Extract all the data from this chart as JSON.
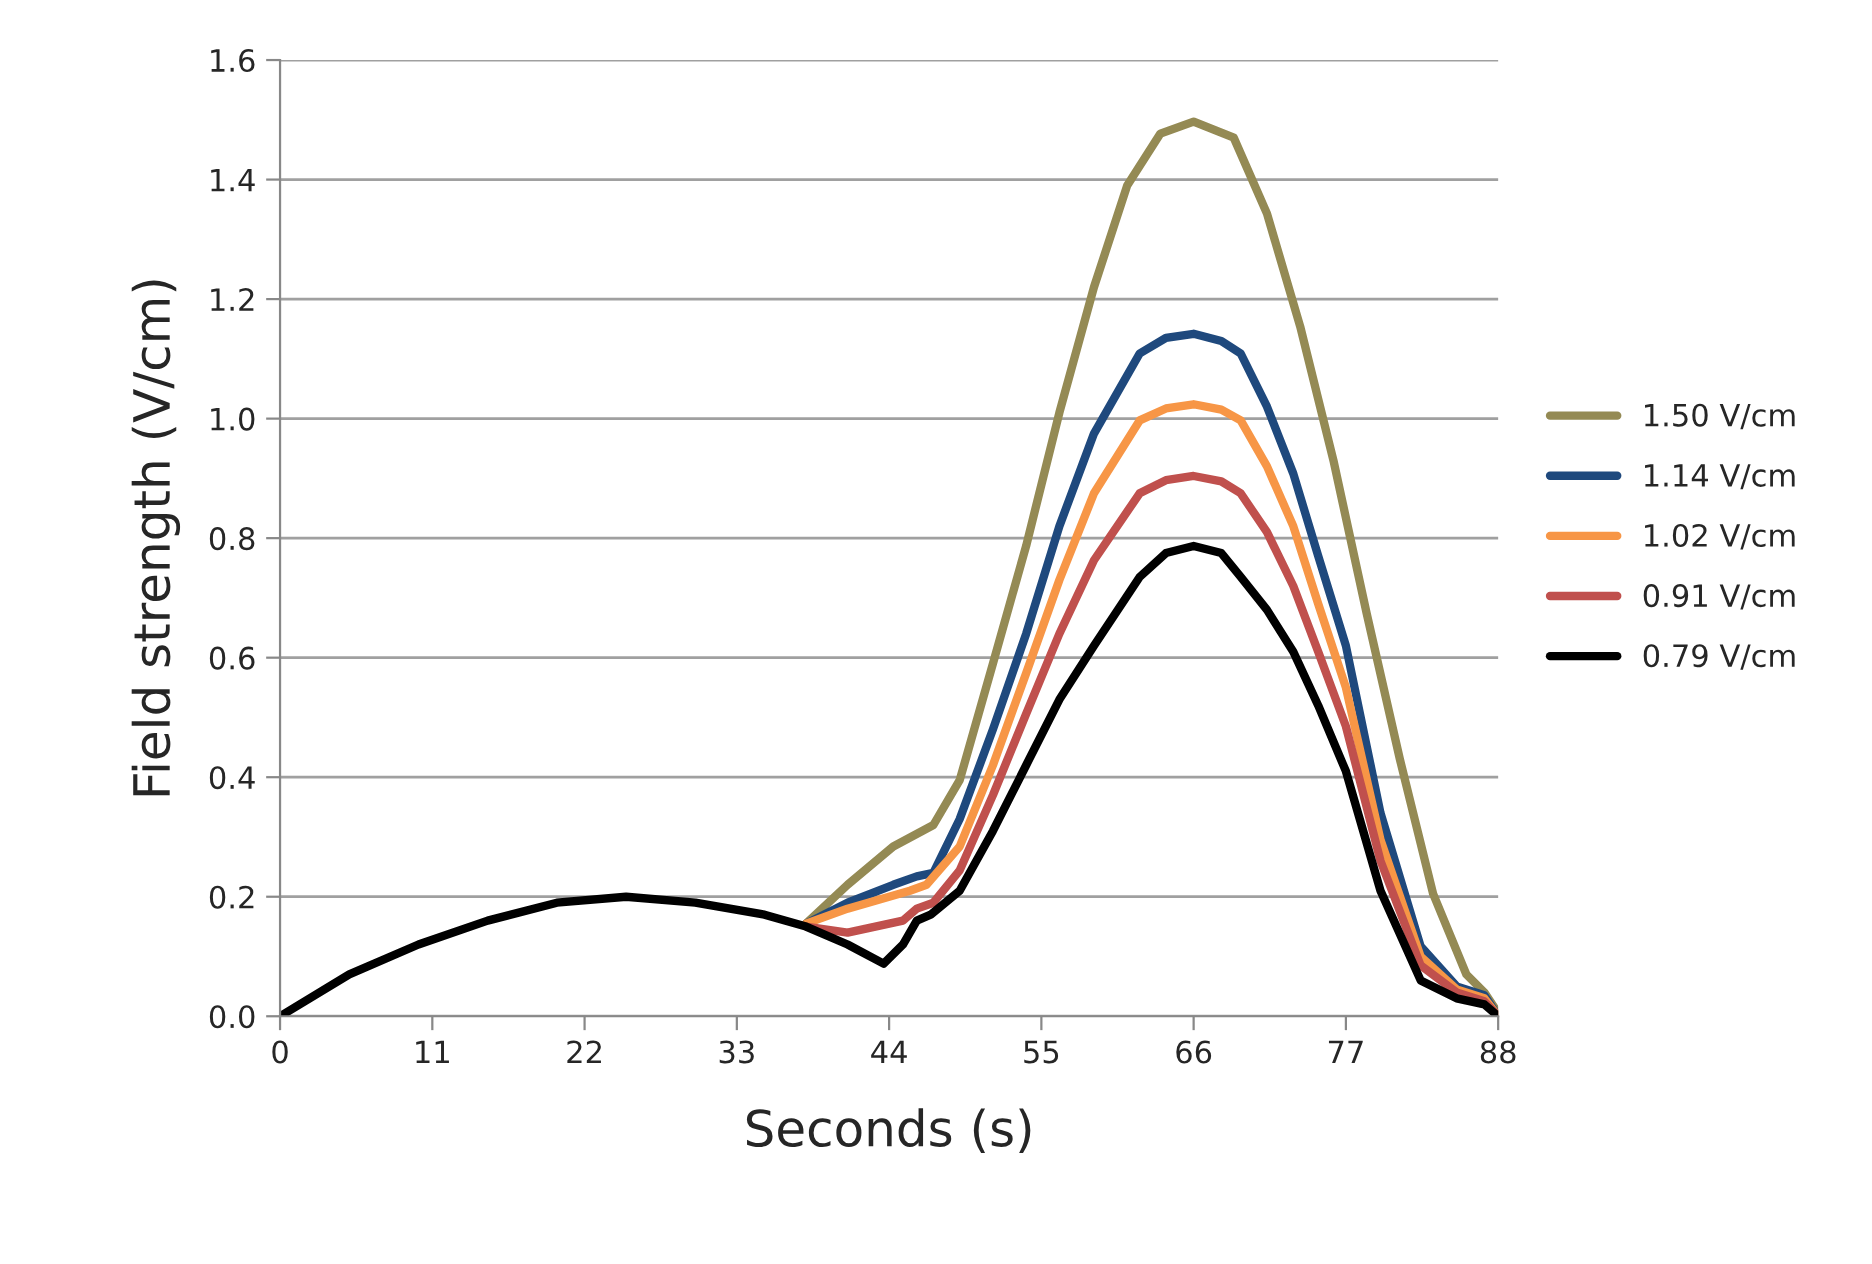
{
  "chart_data": {
    "type": "line",
    "xlabel": "Seconds (s)",
    "ylabel": "Field strength (V/cm)",
    "xlim": [
      0,
      88
    ],
    "xticks": [
      0,
      11,
      22,
      33,
      44,
      55,
      66,
      77,
      88
    ],
    "ylim": [
      0,
      1.6
    ],
    "yticks": [
      {
        "value": 0,
        "label": "0.0"
      },
      {
        "value": 0.2,
        "label": "0.2"
      },
      {
        "value": 0.4,
        "label": "0.4"
      },
      {
        "value": 0.6,
        "label": "0.6"
      },
      {
        "value": 0.8,
        "label": "0.8"
      },
      {
        "value": 1.0,
        "label": "1.0"
      },
      {
        "value": 1.2,
        "label": "1.2"
      },
      {
        "value": 1.4,
        "label": "1.4"
      },
      {
        "value": 1.6,
        "label": "1.6"
      }
    ],
    "grid": "y",
    "legend": "right",
    "marker": "none",
    "line_style": "solid",
    "series": [
      {
        "name": "1.50 V/cm",
        "color": "#948a54",
        "x": [
          38,
          41,
          44.3,
          47.2,
          49.1,
          51.5,
          53.9,
          56.3,
          58.8,
          61.2,
          63.6,
          66,
          68.9,
          71.3,
          73.7,
          76.1,
          78.5,
          80.9,
          83.3,
          85.7,
          87,
          88
        ],
        "values": [
          0.155,
          0.22,
          0.284,
          0.32,
          0.395,
          0.59,
          0.787,
          1.01,
          1.22,
          1.39,
          1.477,
          1.497,
          1.47,
          1.343,
          1.154,
          0.93,
          0.674,
          0.43,
          0.205,
          0.07,
          0.04,
          0.005
        ]
      },
      {
        "name": "1.14 V/cm",
        "color": "#1f497d",
        "x": [
          38,
          41,
          44.3,
          46,
          47.2,
          49.1,
          51.5,
          53.9,
          56.3,
          58.8,
          62.1,
          64,
          66,
          68,
          69.4,
          71.3,
          73.2,
          75,
          77,
          79.5,
          82.4,
          85,
          87,
          88
        ],
        "values": [
          0.155,
          0.19,
          0.22,
          0.234,
          0.24,
          0.33,
          0.48,
          0.64,
          0.82,
          0.975,
          1.109,
          1.135,
          1.142,
          1.13,
          1.109,
          1.02,
          0.908,
          0.77,
          0.62,
          0.34,
          0.117,
          0.05,
          0.035,
          0
        ]
      },
      {
        "name": "1.02 V/cm",
        "color": "#f79646",
        "x": [
          38,
          41,
          45.5,
          46.7,
          49.1,
          51.5,
          53.9,
          56.3,
          58.8,
          62.1,
          64,
          66,
          68,
          69.4,
          71.3,
          73.2,
          75,
          77,
          79.5,
          82.4,
          85,
          87,
          88
        ],
        "values": [
          0.155,
          0.18,
          0.21,
          0.22,
          0.284,
          0.42,
          0.574,
          0.73,
          0.875,
          0.997,
          1.017,
          1.024,
          1.015,
          0.997,
          0.92,
          0.82,
          0.69,
          0.55,
          0.295,
          0.1,
          0.045,
          0.03,
          0
        ]
      },
      {
        "name": "0.91 V/cm",
        "color": "#c0504d",
        "x": [
          38,
          41,
          45,
          46,
          47.2,
          49.1,
          51.5,
          53.9,
          56.3,
          58.8,
          62.1,
          64,
          66,
          68,
          69.4,
          71.3,
          73.2,
          75,
          77,
          79.5,
          82.4,
          85,
          87,
          88
        ],
        "values": [
          0.15,
          0.14,
          0.16,
          0.18,
          0.19,
          0.244,
          0.37,
          0.506,
          0.64,
          0.763,
          0.875,
          0.897,
          0.904,
          0.895,
          0.875,
          0.81,
          0.72,
          0.61,
          0.485,
          0.26,
          0.085,
          0.04,
          0.025,
          0
        ]
      },
      {
        "name": "0.79 V/cm",
        "color": "#000000",
        "x": [
          0,
          5,
          10,
          15,
          20,
          25,
          30,
          35,
          38,
          41,
          43.6,
          45,
          46,
          47,
          49.1,
          51.5,
          53.9,
          56.3,
          58.8,
          62.1,
          64,
          66,
          68,
          69.4,
          71.3,
          73.2,
          75,
          77,
          79.5,
          82.4,
          85,
          87,
          88
        ],
        "values": [
          0,
          0.07,
          0.12,
          0.16,
          0.19,
          0.2,
          0.19,
          0.17,
          0.15,
          0.12,
          0.088,
          0.12,
          0.16,
          0.17,
          0.21,
          0.31,
          0.42,
          0.53,
          0.62,
          0.735,
          0.775,
          0.787,
          0.775,
          0.735,
          0.68,
          0.61,
          0.52,
          0.41,
          0.21,
          0.06,
          0.03,
          0.02,
          0
        ]
      }
    ]
  }
}
